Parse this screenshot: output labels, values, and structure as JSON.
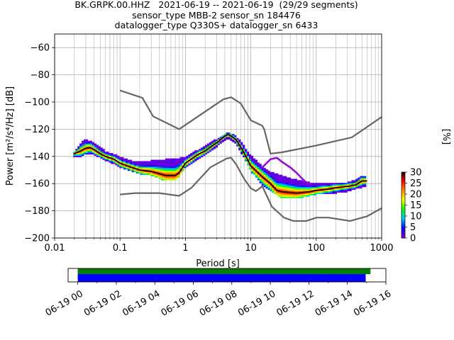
{
  "title_lines": [
    "BK.GRPK.00.HHZ   2021-06-19 -- 2021-06-19  (29/29 segments)",
    "sensor_type MBB-2 sensor_sn 184476",
    "datalogger_type Q330S+ datalogger_sn 6433"
  ],
  "chart_data": {
    "type": "heatmap",
    "xlabel": "Period [s]",
    "ylabel": "Power [m²/s⁴/Hz] [dB]",
    "xscale": "log",
    "xlim": [
      0.01,
      1000
    ],
    "ylim": [
      -200,
      -50
    ],
    "x_ticks": [
      {
        "value": 0.01,
        "label": "0.01"
      },
      {
        "value": 0.1,
        "label": "0.1"
      },
      {
        "value": 1,
        "label": "1"
      },
      {
        "value": 10,
        "label": "10"
      },
      {
        "value": 100,
        "label": "100"
      },
      {
        "value": 1000,
        "label": "1000"
      }
    ],
    "y_ticks": [
      -60,
      -80,
      -100,
      -120,
      -140,
      -160,
      -180,
      -200
    ],
    "y_tick_labels": [
      "−60",
      "−80",
      "−100",
      "−120",
      "−140",
      "−160",
      "−180",
      "−200"
    ],
    "grid": true,
    "colorbar": {
      "label": "[%]",
      "range": [
        0,
        30
      ],
      "ticks": [
        0,
        5,
        10,
        15,
        20,
        25,
        30
      ],
      "colormap": [
        "#ffffff",
        "#9400d3",
        "#0000ff",
        "#00c8ff",
        "#00ff00",
        "#ffff00",
        "#ff8c00",
        "#ff0000",
        "#000000"
      ]
    },
    "noise_model_color": "#666666",
    "mode_color": "#000000",
    "high_noise_model": [
      [
        0.1,
        -91.5
      ],
      [
        0.22,
        -97
      ],
      [
        0.32,
        -110.5
      ],
      [
        0.8,
        -120
      ],
      [
        3.8,
        -98
      ],
      [
        5,
        -96.5
      ],
      [
        7,
        -101
      ],
      [
        10,
        -113.5
      ],
      [
        15,
        -117.5
      ],
      [
        16,
        -120
      ],
      [
        20,
        -138
      ],
      [
        30,
        -137
      ],
      [
        100,
        -132
      ],
      [
        350,
        -126
      ],
      [
        1000,
        -111
      ]
    ],
    "low_noise_model": [
      [
        0.1,
        -168
      ],
      [
        0.17,
        -167
      ],
      [
        0.4,
        -167
      ],
      [
        0.8,
        -169
      ],
      [
        1.24,
        -163
      ],
      [
        2.4,
        -148
      ],
      [
        4.3,
        -141.5
      ],
      [
        5,
        -141
      ],
      [
        6,
        -146
      ],
      [
        8,
        -157
      ],
      [
        10,
        -163.5
      ],
      [
        12,
        -165.5
      ],
      [
        15,
        -162
      ],
      [
        21,
        -177
      ],
      [
        32,
        -185
      ],
      [
        45,
        -187.5
      ],
      [
        70,
        -187.5
      ],
      [
        101,
        -185
      ],
      [
        154,
        -185
      ],
      [
        328,
        -187.5
      ],
      [
        600,
        -184
      ],
      [
        1000,
        -178
      ]
    ],
    "mode_curve": [
      [
        0.02,
        -138
      ],
      [
        0.025,
        -136
      ],
      [
        0.03,
        -134
      ],
      [
        0.035,
        -133.5
      ],
      [
        0.04,
        -135
      ],
      [
        0.05,
        -138
      ],
      [
        0.06,
        -140
      ],
      [
        0.08,
        -142
      ],
      [
        0.1,
        -145
      ],
      [
        0.15,
        -148
      ],
      [
        0.2,
        -150
      ],
      [
        0.3,
        -151
      ],
      [
        0.5,
        -154
      ],
      [
        0.7,
        -154
      ],
      [
        0.8,
        -152
      ],
      [
        1,
        -145
      ],
      [
        1.5,
        -139
      ],
      [
        2,
        -136
      ],
      [
        3,
        -130
      ],
      [
        4,
        -125
      ],
      [
        4.5,
        -124
      ],
      [
        5,
        -125
      ],
      [
        6,
        -128
      ],
      [
        7,
        -133
      ],
      [
        8,
        -138
      ],
      [
        10,
        -147
      ],
      [
        15,
        -155
      ],
      [
        20,
        -160
      ],
      [
        25,
        -165
      ],
      [
        30,
        -166
      ],
      [
        50,
        -167
      ],
      [
        80,
        -166
      ],
      [
        100,
        -165
      ],
      [
        150,
        -164
      ],
      [
        200,
        -163
      ],
      [
        300,
        -162
      ],
      [
        400,
        -161
      ],
      [
        500,
        -158
      ],
      [
        600,
        -158
      ]
    ],
    "spread_upper": [
      [
        0.02,
        -137
      ],
      [
        0.025,
        -131
      ],
      [
        0.03,
        -128
      ],
      [
        0.04,
        -131
      ],
      [
        0.06,
        -137
      ],
      [
        0.1,
        -141
      ],
      [
        0.15,
        -144
      ],
      [
        0.2,
        -145
      ],
      [
        0.3,
        -144
      ],
      [
        0.5,
        -143
      ],
      [
        0.8,
        -142
      ],
      [
        1,
        -141
      ],
      [
        2,
        -133
      ],
      [
        3,
        -128
      ],
      [
        4.5,
        -123
      ],
      [
        6,
        -126
      ],
      [
        7,
        -130
      ],
      [
        10,
        -140
      ],
      [
        15,
        -148
      ],
      [
        20,
        -152
      ],
      [
        30,
        -155
      ],
      [
        50,
        -158
      ],
      [
        80,
        -160
      ],
      [
        100,
        -160
      ],
      [
        200,
        -160
      ],
      [
        300,
        -160
      ],
      [
        400,
        -158
      ],
      [
        500,
        -155
      ],
      [
        600,
        -155
      ]
    ],
    "spread_lower": [
      [
        0.02,
        -140
      ],
      [
        0.025,
        -139
      ],
      [
        0.03,
        -137
      ],
      [
        0.04,
        -138
      ],
      [
        0.06,
        -142
      ],
      [
        0.1,
        -147
      ],
      [
        0.15,
        -150
      ],
      [
        0.2,
        -152
      ],
      [
        0.3,
        -153
      ],
      [
        0.5,
        -157
      ],
      [
        0.7,
        -156
      ],
      [
        0.8,
        -154
      ],
      [
        1,
        -147
      ],
      [
        2,
        -138
      ],
      [
        3,
        -132
      ],
      [
        4.5,
        -126
      ],
      [
        6,
        -130
      ],
      [
        8,
        -141
      ],
      [
        10,
        -150
      ],
      [
        15,
        -160
      ],
      [
        20,
        -164
      ],
      [
        30,
        -170
      ],
      [
        50,
        -170
      ],
      [
        80,
        -168
      ],
      [
        100,
        -167
      ],
      [
        200,
        -166
      ],
      [
        300,
        -165
      ],
      [
        400,
        -163
      ],
      [
        500,
        -162
      ],
      [
        600,
        -161
      ]
    ],
    "upper_branch": [
      [
        15,
        -148
      ],
      [
        20,
        -142
      ],
      [
        25,
        -141
      ],
      [
        30,
        -144
      ],
      [
        40,
        -148
      ],
      [
        50,
        -152
      ],
      [
        60,
        -156
      ],
      [
        70,
        -159
      ],
      [
        80,
        -160
      ]
    ]
  },
  "timeline": {
    "tick_labels": [
      "06-19 00",
      "06-19 02",
      "06-19 04",
      "06-19 06",
      "06-19 08",
      "06-19 10",
      "06-19 12",
      "06-19 14",
      "06-19 16"
    ],
    "range_hours": [
      -0.5,
      16.0
    ],
    "green_bar_hours": [
      0,
      15.2
    ],
    "blue_bar_hours": [
      0,
      14.95
    ],
    "green_color": "#008000",
    "blue_color": "#0000ff"
  }
}
